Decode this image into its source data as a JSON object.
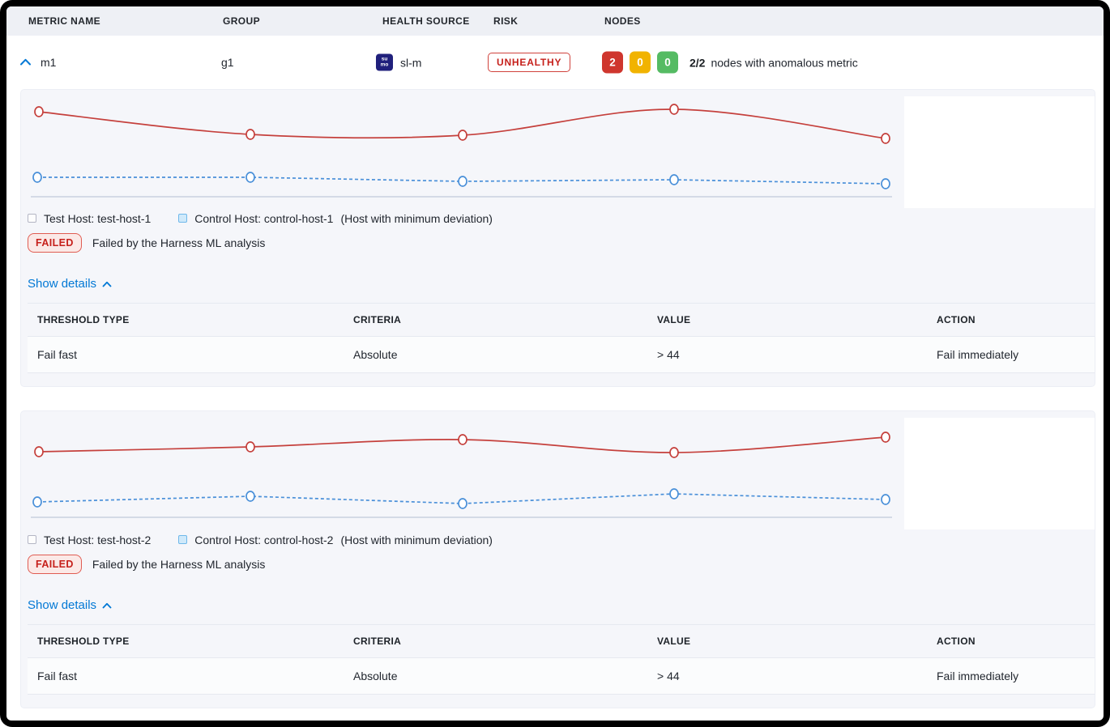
{
  "header": {
    "columns": [
      "METRIC NAME",
      "GROUP",
      "HEALTH SOURCE",
      "RISK",
      "NODES"
    ]
  },
  "summary_row": {
    "metric_name": "m1",
    "group": "g1",
    "health_source": {
      "icon_lines": [
        "su",
        "mo"
      ],
      "label": "sl-m"
    },
    "risk_badge": "UNHEALTHY",
    "node_counts": [
      {
        "value": "2",
        "status": "unhealthy",
        "color": "#cf362e"
      },
      {
        "value": "0",
        "status": "warning",
        "color": "#f1b300"
      },
      {
        "value": "0",
        "status": "healthy",
        "color": "#55bb63"
      }
    ],
    "ratio": "2/2",
    "ratio_caption": "nodes with anomalous metric"
  },
  "colors": {
    "accent_blue": "#0278d5",
    "test_line": "#c5403c",
    "control_line": "#4a90d9",
    "risk_red": "#c6201b",
    "card_bg": "#f5f6fa",
    "header_bg": "#eef0f5"
  },
  "cards": [
    {
      "legend": {
        "test_label": "Test Host: test-host-1",
        "control_label": "Control Host: control-host-1",
        "note": "(Host with minimum deviation)"
      },
      "status": {
        "badge": "FAILED",
        "message": "Failed by the Harness ML analysis"
      },
      "details_toggle": "Show details",
      "table": {
        "headers": [
          "THRESHOLD TYPE",
          "CRITERIA",
          "VALUE",
          "ACTION"
        ],
        "rows": [
          [
            "Fail fast",
            "Absolute",
            "> 44",
            "Fail immediately"
          ]
        ]
      },
      "chart": {
        "type": "line",
        "axis_x1": 12,
        "axis_x2": 1075,
        "axis_y": 132,
        "series": [
          {
            "name": "Test Host: test-host-1",
            "color": "#c5403c",
            "dash": false,
            "smooth": true,
            "points": [
              [
                22,
                27
              ],
              [
                283,
                55
              ],
              [
                545,
                56
              ],
              [
                806,
                24
              ],
              [
                1067,
                60
              ]
            ]
          },
          {
            "name": "Control Host: control-host-1",
            "color": "#4a90d9",
            "dash": true,
            "smooth": false,
            "points": [
              [
                20,
                108
              ],
              [
                283,
                108
              ],
              [
                545,
                113
              ],
              [
                806,
                111
              ],
              [
                1067,
                116
              ]
            ]
          }
        ]
      }
    },
    {
      "legend": {
        "test_label": "Test Host: test-host-2",
        "control_label": "Control Host: control-host-2",
        "note": "(Host with minimum deviation)"
      },
      "status": {
        "badge": "FAILED",
        "message": "Failed by the Harness ML analysis"
      },
      "details_toggle": "Show details",
      "table": {
        "headers": [
          "THRESHOLD TYPE",
          "CRITERIA",
          "VALUE",
          "ACTION"
        ],
        "rows": [
          [
            "Fail fast",
            "Absolute",
            "> 44",
            "Fail immediately"
          ]
        ]
      },
      "chart": {
        "type": "line",
        "axis_x1": 12,
        "axis_x2": 1075,
        "axis_y": 131,
        "series": [
          {
            "name": "Test Host: test-host-2",
            "color": "#c5403c",
            "dash": false,
            "smooth": true,
            "points": [
              [
                22,
                50
              ],
              [
                283,
                44
              ],
              [
                545,
                35
              ],
              [
                806,
                51
              ],
              [
                1067,
                32
              ]
            ]
          },
          {
            "name": "Control Host: control-host-2",
            "color": "#4a90d9",
            "dash": true,
            "smooth": false,
            "points": [
              [
                20,
                112
              ],
              [
                283,
                105
              ],
              [
                545,
                114
              ],
              [
                806,
                102
              ],
              [
                1067,
                109
              ]
            ]
          }
        ]
      }
    }
  ]
}
